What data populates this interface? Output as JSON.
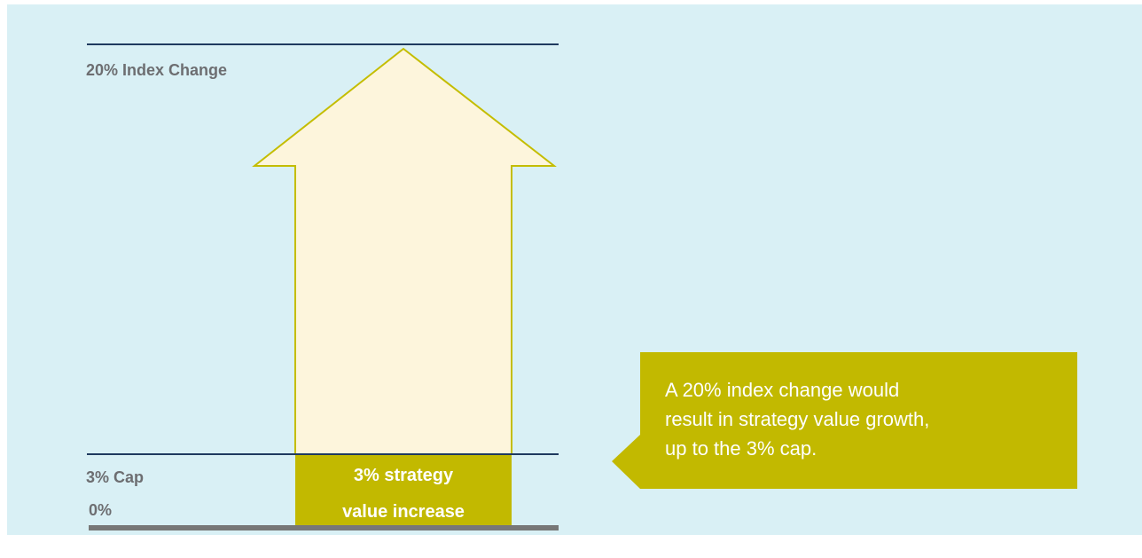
{
  "labels": {
    "top": "20% Index Change",
    "cap": "3% Cap",
    "zero": "0%"
  },
  "box": {
    "lines": [
      "3% strategy",
      "value increase"
    ]
  },
  "callout": {
    "lines": [
      "A 20% index change would",
      "result in strategy value growth,",
      "up to the 3% cap."
    ]
  }
}
